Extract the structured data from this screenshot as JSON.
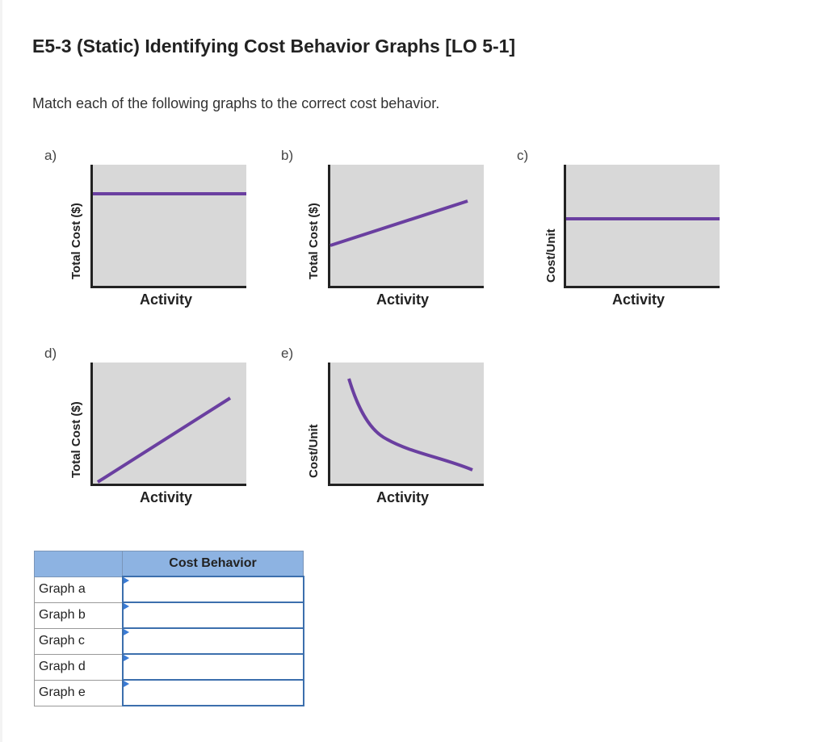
{
  "header": {
    "title": "E5-3 (Static) Identifying Cost Behavior Graphs [LO 5-1]",
    "instructions": "Match each of the following graphs to the correct cost behavior."
  },
  "graphs": [
    {
      "letter": "a)",
      "y_label": "Total Cost ($)",
      "x_label": "Activity",
      "shape": "horizontal-line"
    },
    {
      "letter": "b)",
      "y_label": "Total Cost ($)",
      "x_label": "Activity",
      "shape": "line-with-intercept"
    },
    {
      "letter": "c)",
      "y_label": "Cost/Unit",
      "x_label": "Activity",
      "shape": "horizontal-line"
    },
    {
      "letter": "d)",
      "y_label": "Total Cost ($)",
      "x_label": "Activity",
      "shape": "line-through-origin"
    },
    {
      "letter": "e)",
      "y_label": "Cost/Unit",
      "x_label": "Activity",
      "shape": "decreasing-curve"
    }
  ],
  "colors": {
    "plot_line": "#6a3fa0",
    "plot_bg": "#d8d8d8",
    "table_header": "#8db3e2",
    "cell_border": "#3c6fad"
  },
  "answer_table": {
    "column_header": "Cost Behavior",
    "rows": [
      {
        "label": "Graph a",
        "value": ""
      },
      {
        "label": "Graph b",
        "value": ""
      },
      {
        "label": "Graph c",
        "value": ""
      },
      {
        "label": "Graph d",
        "value": ""
      },
      {
        "label": "Graph e",
        "value": ""
      }
    ]
  }
}
